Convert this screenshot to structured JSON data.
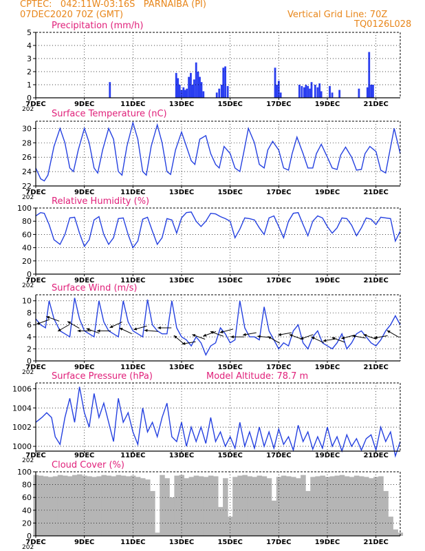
{
  "header": {
    "line1": "CPTEC:   042:11W-03:16S   PARNAIBA (PI)",
    "line2": "07DEC2020 70Z (GMT)",
    "grid_note": "Vertical Grid Line: 70Z",
    "code": "TQ0126L028"
  },
  "colors": {
    "title": "#e0207a",
    "header": "#e8861a",
    "line": "#2440e0",
    "bar": "#2a3ef0",
    "cloud": "#b5b5b5",
    "axis": "#000000",
    "grid": "#000000"
  },
  "x_axis": {
    "range_days": [
      7,
      22
    ],
    "tick_labels": [
      "7DEC",
      "9DEC",
      "11DEC",
      "13DEC",
      "15DEC",
      "17DEC",
      "19DEC",
      "21DEC"
    ],
    "tick_days": [
      7,
      9,
      11,
      13,
      15,
      17,
      19,
      21
    ],
    "corner_label": "202"
  },
  "chart_data": [
    {
      "type": "bar",
      "title": "Precipitation (mm/h)",
      "ylim": [
        0,
        5
      ],
      "yticks": [
        "0",
        "1",
        "2",
        "3",
        "4",
        "5"
      ],
      "grid": "dotted",
      "x_days": [
        10.05,
        12.78,
        12.85,
        12.92,
        13.0,
        13.08,
        13.15,
        13.22,
        13.3,
        13.38,
        13.45,
        13.52,
        13.6,
        13.68,
        13.75,
        13.82,
        13.9,
        14.45,
        14.55,
        14.65,
        14.72,
        14.8,
        14.9,
        16.85,
        16.92,
        17.0,
        17.08,
        17.85,
        17.95,
        18.05,
        18.12,
        18.2,
        18.28,
        18.35,
        18.5,
        18.6,
        18.68,
        18.75,
        19.1,
        19.2,
        19.5,
        20.3,
        20.65,
        20.72,
        20.8,
        20.88
      ],
      "values": [
        1.2,
        1.9,
        1.5,
        1.0,
        0.6,
        0.8,
        0.6,
        0.7,
        1.6,
        1.9,
        1.0,
        1.4,
        2.7,
        2.0,
        1.6,
        1.2,
        0.5,
        0.4,
        0.7,
        1.0,
        2.3,
        2.4,
        0.9,
        2.3,
        1.0,
        1.3,
        0.4,
        1.0,
        0.9,
        0.8,
        1.0,
        0.9,
        0.7,
        1.2,
        1.0,
        0.8,
        1.1,
        0.5,
        0.9,
        0.4,
        0.6,
        0.7,
        0.8,
        3.5,
        1.0,
        1.0
      ]
    },
    {
      "type": "line",
      "title": "Surface Temperature (nC)",
      "ylim": [
        22,
        31
      ],
      "yticks": [
        "22",
        "24",
        "26",
        "28",
        "30"
      ],
      "grid": "dotted",
      "x_days": [
        7.0,
        7.2,
        7.35,
        7.5,
        7.75,
        8.0,
        8.2,
        8.4,
        8.55,
        8.75,
        9.0,
        9.2,
        9.4,
        9.55,
        9.75,
        10.0,
        10.2,
        10.4,
        10.55,
        10.75,
        11.0,
        11.2,
        11.4,
        11.55,
        11.75,
        12.0,
        12.2,
        12.4,
        12.55,
        12.75,
        13.0,
        13.2,
        13.4,
        13.55,
        13.75,
        14.0,
        14.2,
        14.4,
        14.55,
        14.75,
        15.0,
        15.2,
        15.4,
        15.55,
        15.75,
        16.0,
        16.2,
        16.4,
        16.55,
        16.75,
        17.0,
        17.2,
        17.4,
        17.55,
        17.75,
        18.0,
        18.2,
        18.4,
        18.55,
        18.75,
        19.0,
        19.2,
        19.4,
        19.55,
        19.75,
        20.0,
        20.2,
        20.4,
        20.55,
        20.75,
        21.0,
        21.2,
        21.4,
        21.55,
        21.75,
        22.0
      ],
      "values": [
        24.5,
        23.0,
        22.7,
        23.5,
        27.5,
        30.0,
        28.0,
        24.5,
        24.0,
        27.0,
        30.0,
        28.0,
        24.5,
        23.8,
        27.0,
        30.0,
        28.5,
        24.0,
        23.5,
        27.5,
        30.8,
        28.5,
        24.0,
        23.5,
        27.5,
        30.5,
        28.0,
        24.0,
        23.6,
        27.0,
        29.5,
        27.5,
        25.5,
        25.0,
        28.5,
        29.0,
        26.5,
        25.0,
        24.5,
        27.5,
        26.5,
        24.5,
        24.0,
        26.5,
        30.0,
        28.0,
        25.0,
        24.5,
        27.0,
        28.2,
        27.0,
        24.5,
        24.2,
        26.5,
        28.8,
        26.5,
        24.5,
        24.5,
        26.5,
        27.8,
        26.0,
        24.5,
        24.3,
        26.3,
        27.4,
        26.0,
        24.2,
        24.3,
        26.5,
        27.5,
        26.8,
        24.2,
        23.8,
        26.5,
        30.0,
        26.5
      ]
    },
    {
      "type": "line",
      "title": "Relative Humidity (%)",
      "ylim": [
        0,
        100
      ],
      "yticks": [
        "0",
        "20",
        "40",
        "60",
        "80",
        "100"
      ],
      "grid": "dotted",
      "x_days": [
        7.0,
        7.2,
        7.35,
        7.55,
        7.75,
        8.0,
        8.2,
        8.4,
        8.6,
        8.8,
        9.0,
        9.2,
        9.4,
        9.6,
        9.8,
        10.0,
        10.2,
        10.4,
        10.6,
        10.8,
        11.0,
        11.2,
        11.4,
        11.6,
        11.8,
        12.0,
        12.2,
        12.4,
        12.6,
        12.8,
        13.0,
        13.2,
        13.4,
        13.6,
        13.8,
        14.0,
        14.2,
        14.4,
        14.6,
        14.8,
        15.0,
        15.2,
        15.4,
        15.6,
        15.8,
        16.0,
        16.2,
        16.4,
        16.6,
        16.8,
        17.0,
        17.2,
        17.4,
        17.6,
        17.8,
        18.0,
        18.2,
        18.4,
        18.6,
        18.8,
        19.0,
        19.2,
        19.4,
        19.6,
        19.8,
        20.0,
        20.2,
        20.4,
        20.6,
        20.8,
        21.0,
        21.2,
        21.4,
        21.6,
        21.8,
        22.0
      ],
      "values": [
        88,
        93,
        92,
        75,
        52,
        45,
        60,
        85,
        86,
        62,
        42,
        52,
        82,
        87,
        60,
        45,
        55,
        84,
        85,
        60,
        40,
        50,
        83,
        86,
        65,
        45,
        55,
        84,
        82,
        62,
        85,
        93,
        94,
        80,
        72,
        80,
        92,
        91,
        87,
        84,
        80,
        55,
        68,
        85,
        84,
        82,
        70,
        60,
        85,
        88,
        72,
        55,
        80,
        92,
        93,
        75,
        58,
        80,
        88,
        85,
        72,
        62,
        70,
        85,
        84,
        74,
        58,
        70,
        85,
        83,
        75,
        86,
        85,
        84,
        50,
        65
      ]
    },
    {
      "type": "line",
      "title": "Surface Wind (m/s)",
      "ylim": [
        0,
        11
      ],
      "yticks": [
        "0",
        "2",
        "4",
        "6",
        "8",
        "10"
      ],
      "grid": "dotted",
      "x_days": [
        7.0,
        7.2,
        7.4,
        7.55,
        7.75,
        8.0,
        8.2,
        8.4,
        8.6,
        8.8,
        9.0,
        9.2,
        9.4,
        9.6,
        9.8,
        10.0,
        10.2,
        10.4,
        10.6,
        10.8,
        11.0,
        11.2,
        11.4,
        11.6,
        11.8,
        12.0,
        12.2,
        12.4,
        12.6,
        12.8,
        13.0,
        13.2,
        13.4,
        13.6,
        13.8,
        14.0,
        14.2,
        14.4,
        14.6,
        14.8,
        15.0,
        15.2,
        15.4,
        15.6,
        15.8,
        16.0,
        16.2,
        16.4,
        16.6,
        16.8,
        17.0,
        17.2,
        17.4,
        17.6,
        17.8,
        18.0,
        18.2,
        18.4,
        18.6,
        18.8,
        19.0,
        19.2,
        19.4,
        19.6,
        19.8,
        20.0,
        20.2,
        20.4,
        20.6,
        20.8,
        21.0,
        21.2,
        21.4,
        21.6,
        21.8,
        22.0
      ],
      "values": [
        7.0,
        6.0,
        5.5,
        10.0,
        7.0,
        5.0,
        4.5,
        4.0,
        10.5,
        7.0,
        5.0,
        4.5,
        4.0,
        10.0,
        6.5,
        5.0,
        4.5,
        4.0,
        10.0,
        6.5,
        5.0,
        4.5,
        4.0,
        10.2,
        6.0,
        5.0,
        4.5,
        4.5,
        10.0,
        5.5,
        4.0,
        3.5,
        2.5,
        4.0,
        3.0,
        1.0,
        2.5,
        3.0,
        5.5,
        4.5,
        3.0,
        3.5,
        10.0,
        5.5,
        4.0,
        4.0,
        3.5,
        9.0,
        5.0,
        3.5,
        2.0,
        3.0,
        2.5,
        5.0,
        6.0,
        3.0,
        2.0,
        4.0,
        5.0,
        3.0,
        2.5,
        2.0,
        3.0,
        4.5,
        2.0,
        3.0,
        4.5,
        5.0,
        4.0,
        3.0,
        2.5,
        3.5,
        5.0,
        6.0,
        7.5,
        6.0
      ]
    },
    {
      "type": "line",
      "title": "Surface Pressure (hPa)",
      "annotation": "Model Altitude: 78.7  m",
      "ylim": [
        999.5,
        1006.6
      ],
      "yticks": [
        "1000",
        "1002",
        "1004",
        "1006"
      ],
      "grid": "dotted",
      "x_days": [
        7.0,
        7.25,
        7.45,
        7.65,
        7.8,
        8.0,
        8.2,
        8.4,
        8.6,
        8.8,
        9.0,
        9.2,
        9.4,
        9.6,
        9.8,
        10.0,
        10.2,
        10.4,
        10.6,
        10.8,
        11.0,
        11.2,
        11.4,
        11.6,
        11.8,
        12.0,
        12.2,
        12.4,
        12.6,
        12.8,
        13.0,
        13.2,
        13.4,
        13.6,
        13.8,
        14.0,
        14.2,
        14.4,
        14.6,
        14.8,
        15.0,
        15.2,
        15.4,
        15.6,
        15.8,
        16.0,
        16.2,
        16.4,
        16.6,
        16.8,
        17.0,
        17.2,
        17.4,
        17.6,
        17.8,
        18.0,
        18.2,
        18.4,
        18.6,
        18.8,
        19.0,
        19.2,
        19.4,
        19.6,
        19.8,
        20.0,
        20.2,
        20.4,
        20.6,
        20.8,
        21.0,
        21.2,
        21.4,
        21.6,
        21.8,
        22.0
      ],
      "values": [
        1002.5,
        1003.0,
        1003.5,
        1003.0,
        1001.0,
        1000.2,
        1003.0,
        1005.0,
        1002.5,
        1006.2,
        1003.5,
        1002.0,
        1005.5,
        1003.0,
        1004.5,
        1002.5,
        1000.5,
        1005.0,
        1002.5,
        1003.5,
        1001.5,
        1000.2,
        1004.0,
        1001.5,
        1002.5,
        1001.0,
        1003.0,
        1004.5,
        1001.0,
        1000.5,
        1002.5,
        1000.0,
        1002.0,
        1000.5,
        1002.0,
        1000.3,
        1003.0,
        1000.5,
        1001.5,
        1000.0,
        1001.0,
        999.8,
        1002.5,
        1000.0,
        1001.5,
        999.8,
        1002.0,
        1000.0,
        1001.5,
        999.8,
        1001.8,
        1000.2,
        1001.0,
        999.6,
        1002.2,
        1000.5,
        1001.5,
        999.7,
        1001.0,
        999.8,
        1002.0,
        1000.0,
        1001.0,
        999.5,
        1001.2,
        1000.0,
        1000.8,
        999.6,
        1000.8,
        1001.2,
        999.6,
        1002.0,
        1000.5,
        1001.5,
        999.0,
        1000.5
      ]
    },
    {
      "type": "bar",
      "title": "Cloud Cover (%)",
      "ylim": [
        0,
        100
      ],
      "yticks": [
        "0",
        "20",
        "40",
        "60",
        "80",
        "100"
      ],
      "grid": "dotted",
      "x_days": [
        7.0,
        7.2,
        7.4,
        7.6,
        7.8,
        8.0,
        8.2,
        8.4,
        8.6,
        8.8,
        9.0,
        9.2,
        9.4,
        9.6,
        9.8,
        10.0,
        10.2,
        10.4,
        10.6,
        10.8,
        11.0,
        11.2,
        11.4,
        11.6,
        11.8,
        12.0,
        12.2,
        12.4,
        12.6,
        12.8,
        13.0,
        13.2,
        13.4,
        13.6,
        13.8,
        14.0,
        14.2,
        14.4,
        14.6,
        14.8,
        15.0,
        15.2,
        15.4,
        15.6,
        15.8,
        16.0,
        16.2,
        16.4,
        16.6,
        16.8,
        17.0,
        17.2,
        17.4,
        17.6,
        17.8,
        18.0,
        18.2,
        18.4,
        18.6,
        18.8,
        19.0,
        19.2,
        19.4,
        19.6,
        19.8,
        20.0,
        20.2,
        20.4,
        20.6,
        20.8,
        21.0,
        21.2,
        21.4,
        21.6,
        21.8,
        22.0
      ],
      "values": [
        95,
        94,
        93,
        92,
        93,
        95,
        94,
        93,
        95,
        96,
        94,
        93,
        92,
        93,
        95,
        94,
        93,
        95,
        94,
        93,
        94,
        92,
        90,
        88,
        70,
        5,
        95,
        90,
        60,
        94,
        95,
        90,
        92,
        94,
        93,
        92,
        94,
        93,
        45,
        90,
        30,
        92,
        94,
        95,
        93,
        92,
        94,
        93,
        90,
        55,
        92,
        94,
        93,
        92,
        90,
        95,
        70,
        92,
        93,
        94,
        92,
        93,
        94,
        95,
        93,
        92,
        94,
        93,
        92,
        90,
        92,
        93,
        70,
        30,
        10,
        5
      ]
    }
  ],
  "wind_arrows": [
    {
      "day": 7.3,
      "speed": 6.5,
      "to_deg": 160
    },
    {
      "day": 7.7,
      "speed": 7.0,
      "to_deg": 200
    },
    {
      "day": 8.15,
      "speed": 5.5,
      "to_deg": 150
    },
    {
      "day": 8.55,
      "speed": 6.0,
      "to_deg": 210
    },
    {
      "day": 9.0,
      "speed": 5.0,
      "to_deg": 180
    },
    {
      "day": 9.35,
      "speed": 5.0,
      "to_deg": 200
    },
    {
      "day": 9.8,
      "speed": 5.0,
      "to_deg": 180
    },
    {
      "day": 10.3,
      "speed": 6.0,
      "to_deg": 155
    },
    {
      "day": 10.7,
      "speed": 5.0,
      "to_deg": 205
    },
    {
      "day": 11.3,
      "speed": 5.5,
      "to_deg": 165
    },
    {
      "day": 11.75,
      "speed": 5.0,
      "to_deg": 185
    },
    {
      "day": 12.3,
      "speed": 5.5,
      "to_deg": 180
    },
    {
      "day": 12.9,
      "speed": 3.5,
      "to_deg": 220
    },
    {
      "day": 13.3,
      "speed": 3.0,
      "to_deg": 170
    },
    {
      "day": 13.7,
      "speed": 4.0,
      "to_deg": 200
    },
    {
      "day": 14.15,
      "speed": 4.5,
      "to_deg": 160
    },
    {
      "day": 14.45,
      "speed": 4.5,
      "to_deg": 200
    },
    {
      "day": 14.85,
      "speed": 5.0,
      "to_deg": 165
    },
    {
      "day": 15.3,
      "speed": 4.0,
      "to_deg": 180
    },
    {
      "day": 15.8,
      "speed": 4.5,
      "to_deg": 170
    },
    {
      "day": 16.4,
      "speed": 4.0,
      "to_deg": 185
    },
    {
      "day": 16.8,
      "speed": 3.5,
      "to_deg": 210
    },
    {
      "day": 17.25,
      "speed": 4.5,
      "to_deg": 170
    },
    {
      "day": 17.7,
      "speed": 4.0,
      "to_deg": 200
    },
    {
      "day": 18.15,
      "speed": 4.0,
      "to_deg": 160
    },
    {
      "day": 18.6,
      "speed": 3.5,
      "to_deg": 205
    },
    {
      "day": 19.1,
      "speed": 3.5,
      "to_deg": 170
    },
    {
      "day": 19.45,
      "speed": 3.5,
      "to_deg": 200
    },
    {
      "day": 19.85,
      "speed": 4.0,
      "to_deg": 165
    },
    {
      "day": 20.3,
      "speed": 4.0,
      "to_deg": 190
    },
    {
      "day": 20.75,
      "speed": 4.0,
      "to_deg": 200
    },
    {
      "day": 21.2,
      "speed": 4.0,
      "to_deg": 170
    },
    {
      "day": 21.7,
      "speed": 4.5,
      "to_deg": 210
    }
  ]
}
